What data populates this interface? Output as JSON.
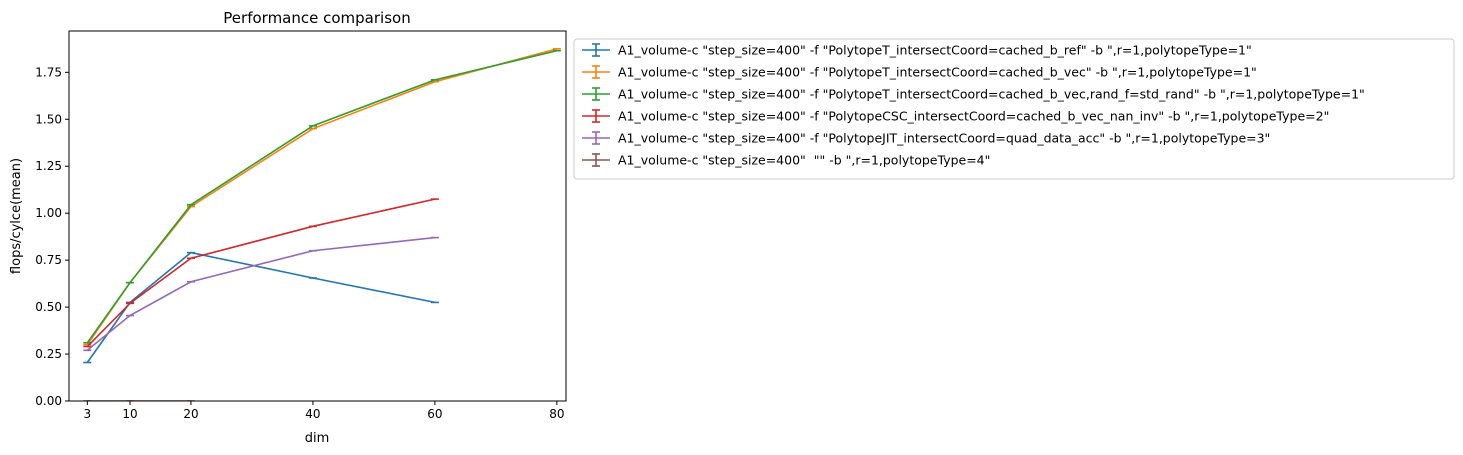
{
  "chart_data": {
    "type": "line",
    "title": "Performance comparison",
    "xlabel": "dim",
    "ylabel": "flops/cylce(mean)",
    "xlim": [
      0,
      81.5
    ],
    "ylim": [
      0,
      1.97
    ],
    "xticks": [
      3,
      10,
      20,
      40,
      60,
      80
    ],
    "yticks": [
      0.0,
      0.25,
      0.5,
      0.75,
      1.0,
      1.25,
      1.5,
      1.75
    ],
    "ytick_labels": [
      "0.00",
      "0.25",
      "0.50",
      "0.75",
      "1.00",
      "1.25",
      "1.50",
      "1.75"
    ],
    "grid": false,
    "legend_position": "outside right, top",
    "series": [
      {
        "name": "A1_volume-c \"step_size=400\" -f \"PolytopeT_intersectCoord=cached_b_ref\" -b \",r=1,polytopeType=1\"",
        "color": "#1f77b4",
        "x": [
          3,
          10,
          20,
          40,
          60
        ],
        "y": [
          0.205,
          0.525,
          0.79,
          0.655,
          0.525
        ]
      },
      {
        "name": "A1_volume-c \"step_size=400\" -f \"PolytopeT_intersectCoord=cached_b_vec\" -b \",r=1,polytopeType=1\"",
        "color": "#ff7f0e",
        "x": [
          3,
          10,
          20,
          40,
          60,
          80
        ],
        "y": [
          0.3,
          0.63,
          1.035,
          1.45,
          1.7,
          1.875
        ]
      },
      {
        "name": "A1_volume-c \"step_size=400\" -f \"PolytopeT_intersectCoord=cached_b_vec,rand_f=std_rand\" -b \",r=1,polytopeType=1\"",
        "color": "#2ca02c",
        "x": [
          3,
          10,
          20,
          40,
          60,
          80
        ],
        "y": [
          0.31,
          0.63,
          1.045,
          1.465,
          1.71,
          1.865
        ]
      },
      {
        "name": "A1_volume-c \"step_size=400\" -f \"PolytopeCSC_intersectCoord=cached_b_vec_nan_inv\" -b \",r=1,polytopeType=2\"",
        "color": "#d62728",
        "x": [
          3,
          10,
          20,
          40,
          60
        ],
        "y": [
          0.29,
          0.52,
          0.76,
          0.93,
          1.075
        ]
      },
      {
        "name": "A1_volume-c \"step_size=400\" -f \"PolytopeJIT_intersectCoord=quad_data_acc\" -b \",r=1,polytopeType=3\"",
        "color": "#9467bd",
        "x": [
          3,
          10,
          20,
          40,
          60
        ],
        "y": [
          0.27,
          0.455,
          0.635,
          0.8,
          0.87
        ]
      },
      {
        "name": "A1_volume-c \"step_size=400\"  \"\" -b \",r=1,polytopeType=4\"",
        "color": "#8c564b",
        "x": [
          3,
          10,
          20
        ],
        "y": [
          0.0,
          0.0,
          0.0
        ]
      }
    ]
  }
}
